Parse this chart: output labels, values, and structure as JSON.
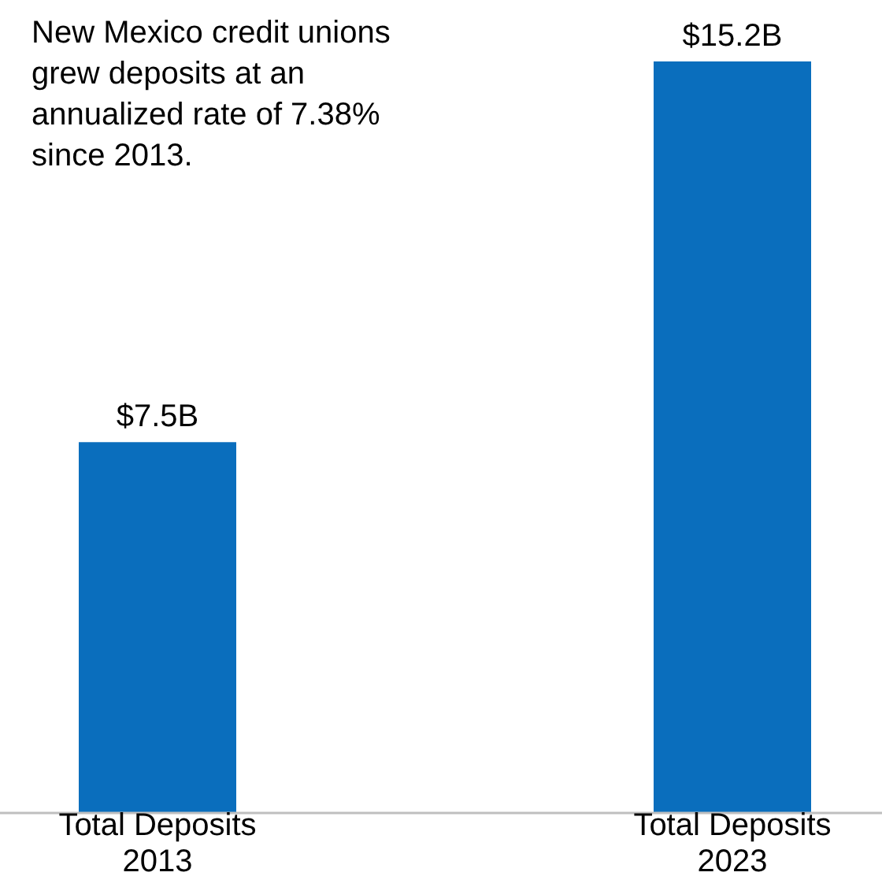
{
  "chart_data": {
    "type": "bar",
    "categories": [
      "Total Deposits 2013",
      "Total Deposits 2023"
    ],
    "values": [
      7.5,
      15.2
    ],
    "value_labels": [
      "$7.5B",
      "$15.2B"
    ],
    "color": "#0a6ebd",
    "annotations": [
      "New Mexico credit unions grew deposits at an annualized rate of 7.38% since 2013."
    ]
  }
}
